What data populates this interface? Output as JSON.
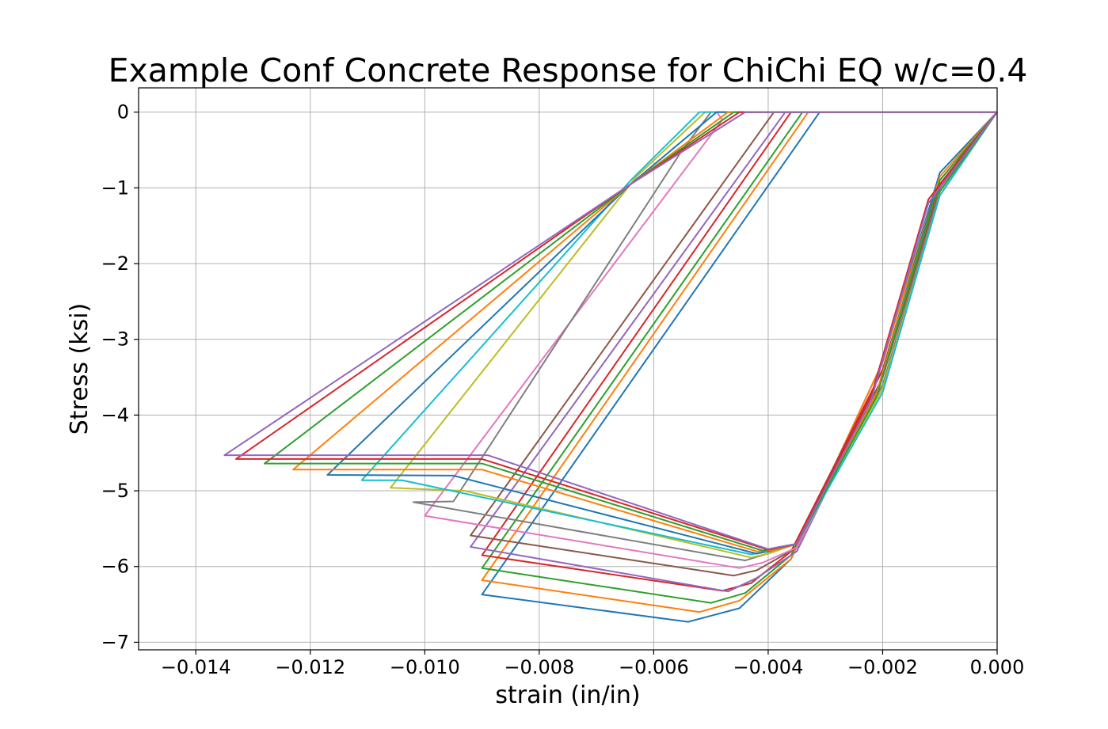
{
  "chart_data": {
    "type": "line",
    "title": "Example Conf Concrete Response for ChiChi EQ w/c=0.4",
    "xlabel": "strain (in/in)",
    "ylabel": "Stress (ksi)",
    "xlim": [
      -0.015,
      0.0
    ],
    "ylim": [
      -7.1,
      0.32
    ],
    "x_ticks": [
      -0.014,
      -0.012,
      -0.01,
      -0.008,
      -0.006,
      -0.004,
      -0.002,
      0.0
    ],
    "x_tick_labels": [
      "−0.014",
      "−0.012",
      "−0.010",
      "−0.008",
      "−0.006",
      "−0.004",
      "−0.002",
      "0.000"
    ],
    "y_ticks": [
      0,
      -1,
      -2,
      -3,
      -4,
      -5,
      -6,
      -7
    ],
    "y_tick_labels": [
      "0",
      "−1",
      "−2",
      "−3",
      "−4",
      "−5",
      "−6",
      "−7"
    ],
    "grid": true,
    "legend": false,
    "series": [
      {
        "color": "#1f77b4",
        "points": [
          [
            0,
            0
          ],
          [
            -0.001,
            -0.8
          ],
          [
            -0.002,
            -3.3
          ],
          [
            -0.0036,
            -5.9
          ],
          [
            -0.0045,
            -6.55
          ],
          [
            -0.0054,
            -6.73
          ],
          [
            -0.009,
            -6.37
          ],
          [
            -0.0031,
            0
          ],
          [
            0,
            0
          ]
        ]
      },
      {
        "color": "#ff7f0e",
        "points": [
          [
            0,
            0
          ],
          [
            -0.001,
            -0.85
          ],
          [
            -0.002,
            -3.3
          ],
          [
            -0.0036,
            -5.9
          ],
          [
            -0.0045,
            -6.45
          ],
          [
            -0.0052,
            -6.6
          ],
          [
            -0.009,
            -6.18
          ],
          [
            -0.0033,
            0
          ],
          [
            0,
            0
          ]
        ]
      },
      {
        "color": "#2ca02c",
        "points": [
          [
            0,
            0
          ],
          [
            -0.001,
            -0.9
          ],
          [
            -0.002,
            -3.4
          ],
          [
            -0.0036,
            -5.85
          ],
          [
            -0.0044,
            -6.35
          ],
          [
            -0.005,
            -6.48
          ],
          [
            -0.009,
            -6.02
          ],
          [
            -0.0034,
            0
          ],
          [
            0,
            0
          ]
        ]
      },
      {
        "color": "#d62728",
        "points": [
          [
            0,
            0
          ],
          [
            -0.001,
            -0.95
          ],
          [
            -0.002,
            -3.4
          ],
          [
            -0.0036,
            -5.8
          ],
          [
            -0.0043,
            -6.22
          ],
          [
            -0.0048,
            -6.32
          ],
          [
            -0.009,
            -5.85
          ],
          [
            -0.0036,
            0
          ],
          [
            0,
            0
          ]
        ]
      },
      {
        "color": "#9467bd",
        "points": [
          [
            0,
            0
          ],
          [
            -0.001,
            -1.0
          ],
          [
            -0.002,
            -3.5
          ],
          [
            -0.0035,
            -5.8
          ],
          [
            -0.0042,
            -6.15
          ],
          [
            -0.0047,
            -6.33
          ],
          [
            -0.0092,
            -5.74
          ],
          [
            -0.0037,
            0
          ],
          [
            0,
            0
          ]
        ]
      },
      {
        "color": "#8c564b",
        "points": [
          [
            0,
            0
          ],
          [
            -0.001,
            -1.0
          ],
          [
            -0.002,
            -3.5
          ],
          [
            -0.0035,
            -5.75
          ],
          [
            -0.0042,
            -6.05
          ],
          [
            -0.0046,
            -6.12
          ],
          [
            -0.0092,
            -5.59
          ],
          [
            -0.0039,
            0
          ],
          [
            0,
            0
          ]
        ]
      },
      {
        "color": "#e377c2",
        "points": [
          [
            0,
            0
          ],
          [
            -0.001,
            -1.05
          ],
          [
            -0.002,
            -3.6
          ],
          [
            -0.0035,
            -5.75
          ],
          [
            -0.0041,
            -5.95
          ],
          [
            -0.0045,
            -6.02
          ],
          [
            -0.01,
            -5.33
          ],
          [
            -0.0048,
            -0.1
          ],
          [
            -0.0049,
            0
          ],
          [
            0,
            0
          ]
        ]
      },
      {
        "color": "#7f7f7f",
        "points": [
          [
            0,
            0
          ],
          [
            -0.001,
            -1.05
          ],
          [
            -0.002,
            -3.6
          ],
          [
            -0.0035,
            -5.7
          ],
          [
            -0.0041,
            -5.85
          ],
          [
            -0.0044,
            -5.92
          ],
          [
            -0.0102,
            -5.15
          ],
          [
            -0.0095,
            -5.14
          ],
          [
            -0.0055,
            -0.5
          ],
          [
            -0.005,
            0
          ],
          [
            0,
            0
          ]
        ]
      },
      {
        "color": "#bcbd22",
        "points": [
          [
            0,
            0
          ],
          [
            -0.001,
            -1.1
          ],
          [
            -0.002,
            -3.65
          ],
          [
            -0.0035,
            -5.7
          ],
          [
            -0.004,
            -5.83
          ],
          [
            -0.0043,
            -5.88
          ],
          [
            -0.0093,
            -5.0
          ],
          [
            -0.0106,
            -4.96
          ],
          [
            -0.0063,
            -0.85
          ],
          [
            -0.0051,
            0
          ],
          [
            0,
            0
          ]
        ]
      },
      {
        "color": "#17becf",
        "points": [
          [
            0,
            0
          ],
          [
            -0.001,
            -1.1
          ],
          [
            -0.002,
            -3.7
          ],
          [
            -0.0035,
            -5.7
          ],
          [
            -0.004,
            -5.8
          ],
          [
            -0.0043,
            -5.84
          ],
          [
            -0.0104,
            -4.86
          ],
          [
            -0.0111,
            -4.86
          ],
          [
            -0.0064,
            -0.9
          ],
          [
            -0.0052,
            0
          ],
          [
            0,
            0
          ]
        ]
      },
      {
        "color": "#1f77b4",
        "points": [
          [
            0,
            0
          ],
          [
            -0.0011,
            -1.1
          ],
          [
            -0.0021,
            -3.7
          ],
          [
            -0.0035,
            -5.7
          ],
          [
            -0.0039,
            -5.78
          ],
          [
            -0.0042,
            -5.83
          ],
          [
            -0.0095,
            -4.8
          ],
          [
            -0.0117,
            -4.79
          ],
          [
            -0.0064,
            -0.95
          ],
          [
            -0.0049,
            0
          ],
          [
            0,
            0
          ]
        ]
      },
      {
        "color": "#ff7f0e",
        "points": [
          [
            0,
            0
          ],
          [
            -0.0011,
            -1.15
          ],
          [
            -0.0021,
            -3.7
          ],
          [
            -0.0035,
            -5.7
          ],
          [
            -0.0039,
            -5.78
          ],
          [
            -0.0042,
            -5.8
          ],
          [
            -0.009,
            -4.72
          ],
          [
            -0.0123,
            -4.72
          ],
          [
            -0.0064,
            -0.95
          ],
          [
            -0.0047,
            0
          ],
          [
            0,
            0
          ]
        ]
      },
      {
        "color": "#2ca02c",
        "points": [
          [
            0,
            0
          ],
          [
            -0.0011,
            -1.15
          ],
          [
            -0.0021,
            -3.75
          ],
          [
            -0.0035,
            -5.7
          ],
          [
            -0.0039,
            -5.76
          ],
          [
            -0.0041,
            -5.79
          ],
          [
            -0.009,
            -4.64
          ],
          [
            -0.0128,
            -4.64
          ],
          [
            -0.0064,
            -0.95
          ],
          [
            -0.0046,
            0
          ],
          [
            0,
            0
          ]
        ]
      },
      {
        "color": "#d62728",
        "points": [
          [
            0,
            0
          ],
          [
            -0.0012,
            -1.15
          ],
          [
            -0.0022,
            -3.75
          ],
          [
            -0.0035,
            -5.7
          ],
          [
            -0.0038,
            -5.75
          ],
          [
            -0.004,
            -5.78
          ],
          [
            -0.009,
            -4.58
          ],
          [
            -0.0133,
            -4.58
          ],
          [
            -0.0064,
            -0.95
          ],
          [
            -0.0045,
            0
          ],
          [
            0,
            0
          ]
        ]
      },
      {
        "color": "#9467bd",
        "points": [
          [
            0,
            0
          ],
          [
            -0.0012,
            -1.2
          ],
          [
            -0.0022,
            -3.8
          ],
          [
            -0.0035,
            -5.7
          ],
          [
            -0.0038,
            -5.74
          ],
          [
            -0.004,
            -5.77
          ],
          [
            -0.0089,
            -4.53
          ],
          [
            -0.0135,
            -4.53
          ],
          [
            -0.0064,
            -0.95
          ],
          [
            -0.0044,
            0
          ],
          [
            0,
            0
          ]
        ]
      }
    ]
  }
}
